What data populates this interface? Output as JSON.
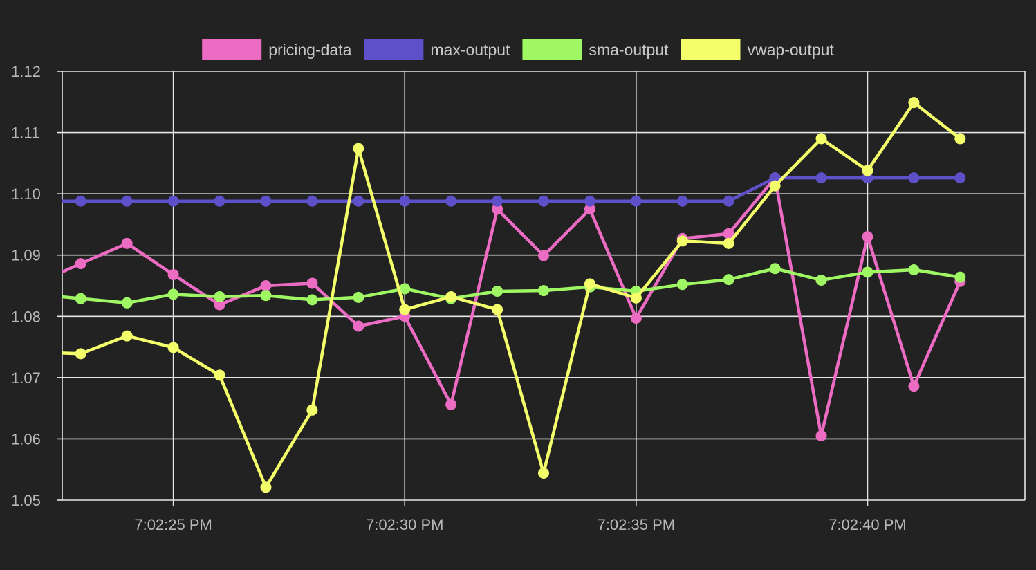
{
  "chart_data": {
    "type": "line",
    "title": "",
    "xlabel": "",
    "ylabel": "",
    "ylim": [
      1.05,
      1.12
    ],
    "yticks": [
      "1.05",
      "1.06",
      "1.07",
      "1.08",
      "1.09",
      "1.10",
      "1.11",
      "1.12"
    ],
    "xlim": [
      "7:02:22.6 PM",
      "7:02:43.4 PM"
    ],
    "xticks": [
      "7:02:25 PM",
      "7:02:30 PM",
      "7:02:35 PM",
      "7:02:40 PM"
    ],
    "grid": true,
    "legend_position": "top-center",
    "x": [
      "7:02:23 PM",
      "7:02:24 PM",
      "7:02:25 PM",
      "7:02:26 PM",
      "7:02:27 PM",
      "7:02:28 PM",
      "7:02:29 PM",
      "7:02:30 PM",
      "7:02:31 PM",
      "7:02:32 PM",
      "7:02:33 PM",
      "7:02:34 PM",
      "7:02:35 PM",
      "7:02:36 PM",
      "7:02:37 PM",
      "7:02:38 PM",
      "7:02:39 PM",
      "7:02:40 PM",
      "7:02:41 PM",
      "7:02:42 PM"
    ],
    "series": [
      {
        "name": "pricing-data",
        "color": "#ec6bc3",
        "values": [
          1.0886,
          1.0919,
          1.0868,
          1.0819,
          1.085,
          1.0854,
          1.0784,
          1.08,
          1.0656,
          1.0975,
          1.0899,
          1.0975,
          1.0797,
          1.0927,
          1.0935,
          1.1026,
          1.0605,
          1.093,
          1.0686,
          1.0857
        ],
        "start_value": 1.0872
      },
      {
        "name": "max-output",
        "color": "#5d50c8",
        "values": [
          1.0988,
          1.0988,
          1.0988,
          1.0988,
          1.0988,
          1.0988,
          1.0988,
          1.0988,
          1.0988,
          1.0988,
          1.0988,
          1.0988,
          1.0988,
          1.0988,
          1.0988,
          1.1026,
          1.1026,
          1.1026,
          1.1026,
          1.1026
        ],
        "start_value": 1.0988
      },
      {
        "name": "sma-output",
        "color": "#a0f764",
        "values": [
          1.0829,
          1.0822,
          1.0836,
          1.0832,
          1.0834,
          1.0827,
          1.0831,
          1.0845,
          1.0829,
          1.0841,
          1.0842,
          1.0848,
          1.0841,
          1.0852,
          1.086,
          1.0878,
          1.0859,
          1.0872,
          1.0876,
          1.0864
        ],
        "start_value": 1.0832
      },
      {
        "name": "vwap-output",
        "color": "#f4fd6a",
        "values": [
          1.0739,
          1.0768,
          1.0749,
          1.0704,
          1.0521,
          1.0647,
          1.1074,
          1.0811,
          1.0832,
          1.0811,
          1.0544,
          1.0853,
          1.083,
          1.0923,
          1.0919,
          1.1013,
          1.109,
          1.1038,
          1.1149,
          1.109
        ],
        "start_value": 1.074
      }
    ]
  }
}
